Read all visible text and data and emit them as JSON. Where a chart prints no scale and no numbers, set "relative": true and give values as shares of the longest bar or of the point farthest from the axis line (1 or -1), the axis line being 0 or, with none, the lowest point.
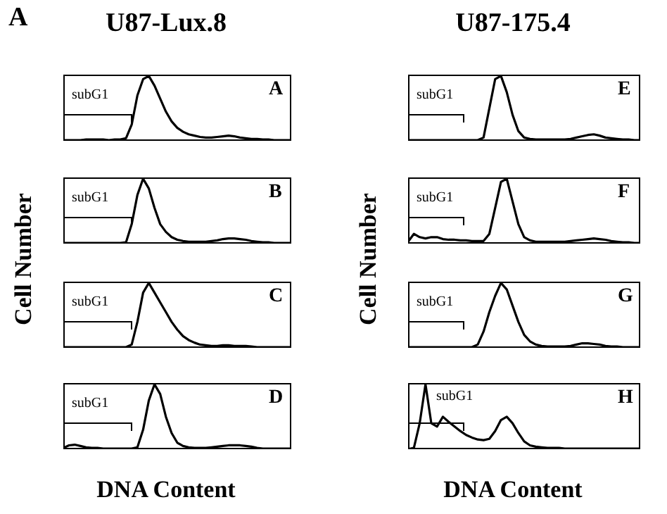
{
  "chart_data": [
    {
      "type": "line",
      "relative": true,
      "title": "U87-Lux.8",
      "annotations": [
        "subG1",
        "A",
        "A"
      ],
      "color": "#000000",
      "categories": [
        null,
        null,
        null,
        null,
        null,
        null,
        null,
        null,
        null,
        null,
        null,
        null,
        null,
        null,
        null,
        null,
        null,
        null,
        null,
        null,
        null,
        null,
        null,
        null,
        null,
        null,
        null,
        null,
        null,
        null,
        null,
        null,
        null,
        null,
        null,
        null,
        null,
        null,
        null,
        null,
        null
      ],
      "values": [
        0.01,
        0.01,
        0.01,
        0.01,
        0.02,
        0.02,
        0.02,
        0.02,
        0.01,
        0.02,
        0.02,
        0.04,
        0.25,
        0.7,
        0.95,
        1.0,
        0.85,
        0.65,
        0.45,
        0.3,
        0.2,
        0.14,
        0.1,
        0.08,
        0.06,
        0.05,
        0.05,
        0.06,
        0.07,
        0.08,
        0.07,
        0.05,
        0.04,
        0.03,
        0.03,
        0.02,
        0.02,
        0.01,
        0.01,
        0.01,
        0.01
      ]
    },
    {
      "type": "line",
      "relative": true,
      "ylabel": "Cell Number",
      "annotations": [
        "subG1",
        "B"
      ],
      "color": "#000000",
      "categories": [
        null,
        null,
        null,
        null,
        null,
        null,
        null,
        null,
        null,
        null,
        null,
        null,
        null,
        null,
        null,
        null,
        null,
        null,
        null,
        null,
        null,
        null,
        null,
        null,
        null,
        null,
        null,
        null,
        null,
        null,
        null,
        null,
        null,
        null,
        null,
        null,
        null,
        null,
        null,
        null,
        null
      ],
      "values": [
        0.01,
        0.01,
        0.01,
        0.01,
        0.01,
        0.01,
        0.01,
        0.01,
        0.01,
        0.01,
        0.01,
        0.02,
        0.3,
        0.75,
        1.0,
        0.85,
        0.55,
        0.3,
        0.18,
        0.1,
        0.06,
        0.04,
        0.03,
        0.03,
        0.03,
        0.03,
        0.04,
        0.05,
        0.07,
        0.08,
        0.08,
        0.07,
        0.06,
        0.04,
        0.03,
        0.02,
        0.02,
        0.01,
        0.01,
        0.01,
        0.01
      ]
    },
    {
      "type": "line",
      "relative": true,
      "annotations": [
        "subG1",
        "C"
      ],
      "color": "#000000",
      "categories": [
        null,
        null,
        null,
        null,
        null,
        null,
        null,
        null,
        null,
        null,
        null,
        null,
        null,
        null,
        null,
        null,
        null,
        null,
        null,
        null,
        null,
        null,
        null,
        null,
        null,
        null,
        null,
        null,
        null,
        null,
        null,
        null,
        null,
        null,
        null,
        null,
        null,
        null,
        null,
        null,
        null
      ],
      "values": [
        0.01,
        0.01,
        0.01,
        0.01,
        0.01,
        0.01,
        0.01,
        0.01,
        0.01,
        0.01,
        0.01,
        0.01,
        0.05,
        0.4,
        0.85,
        1.0,
        0.85,
        0.7,
        0.55,
        0.4,
        0.28,
        0.18,
        0.12,
        0.08,
        0.05,
        0.04,
        0.03,
        0.03,
        0.04,
        0.04,
        0.03,
        0.03,
        0.03,
        0.02,
        0.01,
        0.01,
        0.01,
        0.01,
        0.01,
        0.01,
        0.01
      ]
    },
    {
      "type": "line",
      "relative": true,
      "xlabel": "DNA Content",
      "annotations": [
        "subG1",
        "D"
      ],
      "color": "#000000",
      "categories": [
        null,
        null,
        null,
        null,
        null,
        null,
        null,
        null,
        null,
        null,
        null,
        null,
        null,
        null,
        null,
        null,
        null,
        null,
        null,
        null,
        null,
        null,
        null,
        null,
        null,
        null,
        null,
        null,
        null,
        null,
        null,
        null,
        null,
        null,
        null,
        null,
        null,
        null,
        null,
        null,
        null
      ],
      "values": [
        0.02,
        0.06,
        0.07,
        0.05,
        0.03,
        0.02,
        0.02,
        0.01,
        0.01,
        0.01,
        0.01,
        0.01,
        0.01,
        0.03,
        0.3,
        0.75,
        1.0,
        0.85,
        0.5,
        0.25,
        0.1,
        0.05,
        0.03,
        0.02,
        0.02,
        0.02,
        0.03,
        0.04,
        0.05,
        0.06,
        0.06,
        0.06,
        0.05,
        0.04,
        0.02,
        0.01,
        0.01,
        0.01,
        0.01,
        0.01,
        0.01
      ]
    },
    {
      "type": "line",
      "relative": true,
      "title": "U87-175.4",
      "annotations": [
        "subG1",
        "E"
      ],
      "color": "#000000",
      "categories": [
        null,
        null,
        null,
        null,
        null,
        null,
        null,
        null,
        null,
        null,
        null,
        null,
        null,
        null,
        null,
        null,
        null,
        null,
        null,
        null,
        null,
        null,
        null,
        null,
        null,
        null,
        null,
        null,
        null,
        null,
        null,
        null,
        null,
        null,
        null,
        null,
        null,
        null,
        null,
        null,
        null
      ],
      "values": [
        0.01,
        0.01,
        0.01,
        0.01,
        0.01,
        0.01,
        0.01,
        0.01,
        0.01,
        0.01,
        0.01,
        0.01,
        0.01,
        0.05,
        0.5,
        0.95,
        1.0,
        0.75,
        0.4,
        0.15,
        0.05,
        0.03,
        0.02,
        0.02,
        0.02,
        0.02,
        0.02,
        0.02,
        0.03,
        0.05,
        0.07,
        0.09,
        0.1,
        0.08,
        0.05,
        0.04,
        0.03,
        0.02,
        0.02,
        0.01,
        0.01
      ]
    },
    {
      "type": "line",
      "relative": true,
      "ylabel": "Cell Number",
      "annotations": [
        "subG1",
        "F"
      ],
      "color": "#000000",
      "categories": [
        null,
        null,
        null,
        null,
        null,
        null,
        null,
        null,
        null,
        null,
        null,
        null,
        null,
        null,
        null,
        null,
        null,
        null,
        null,
        null,
        null,
        null,
        null,
        null,
        null,
        null,
        null,
        null,
        null,
        null,
        null,
        null,
        null,
        null,
        null,
        null,
        null,
        null,
        null,
        null,
        null
      ],
      "values": [
        0.03,
        0.15,
        0.1,
        0.08,
        0.1,
        0.1,
        0.07,
        0.06,
        0.06,
        0.05,
        0.05,
        0.04,
        0.04,
        0.04,
        0.15,
        0.55,
        0.95,
        1.0,
        0.65,
        0.3,
        0.1,
        0.05,
        0.03,
        0.03,
        0.03,
        0.03,
        0.03,
        0.03,
        0.04,
        0.05,
        0.06,
        0.07,
        0.08,
        0.07,
        0.06,
        0.04,
        0.03,
        0.02,
        0.02,
        0.01,
        0.01
      ]
    },
    {
      "type": "line",
      "relative": true,
      "annotations": [
        "subG1",
        "G"
      ],
      "color": "#000000",
      "categories": [
        null,
        null,
        null,
        null,
        null,
        null,
        null,
        null,
        null,
        null,
        null,
        null,
        null,
        null,
        null,
        null,
        null,
        null,
        null,
        null,
        null,
        null,
        null,
        null,
        null,
        null,
        null,
        null,
        null,
        null,
        null,
        null,
        null,
        null,
        null,
        null,
        null,
        null,
        null,
        null,
        null
      ],
      "values": [
        0.01,
        0.01,
        0.01,
        0.01,
        0.01,
        0.01,
        0.01,
        0.01,
        0.01,
        0.01,
        0.01,
        0.01,
        0.05,
        0.25,
        0.55,
        0.8,
        1.0,
        0.9,
        0.65,
        0.4,
        0.2,
        0.1,
        0.05,
        0.03,
        0.02,
        0.02,
        0.02,
        0.02,
        0.03,
        0.05,
        0.07,
        0.07,
        0.06,
        0.05,
        0.03,
        0.02,
        0.02,
        0.01,
        0.01,
        0.01,
        0.01
      ]
    },
    {
      "type": "line",
      "relative": true,
      "xlabel": "DNA Content",
      "annotations": [
        "subG1",
        "H"
      ],
      "color": "#000000",
      "categories": [
        null,
        null,
        null,
        null,
        null,
        null,
        null,
        null,
        null,
        null,
        null,
        null,
        null,
        null,
        null,
        null,
        null,
        null,
        null,
        null,
        null,
        null,
        null,
        null,
        null,
        null,
        null,
        null,
        null,
        null,
        null,
        null,
        null,
        null,
        null,
        null,
        null,
        null,
        null,
        null,
        null
      ],
      "values": [
        0.0,
        0.02,
        0.4,
        1.0,
        0.4,
        0.35,
        0.5,
        0.42,
        0.35,
        0.28,
        0.22,
        0.18,
        0.15,
        0.14,
        0.16,
        0.28,
        0.45,
        0.5,
        0.4,
        0.25,
        0.12,
        0.06,
        0.04,
        0.03,
        0.02,
        0.02,
        0.02,
        0.01,
        0.01,
        0.01,
        0.01,
        0.01,
        0.01,
        0.01,
        0.01,
        0.01,
        0.01,
        0.01,
        0.01,
        0.01,
        0.01
      ]
    }
  ]
}
